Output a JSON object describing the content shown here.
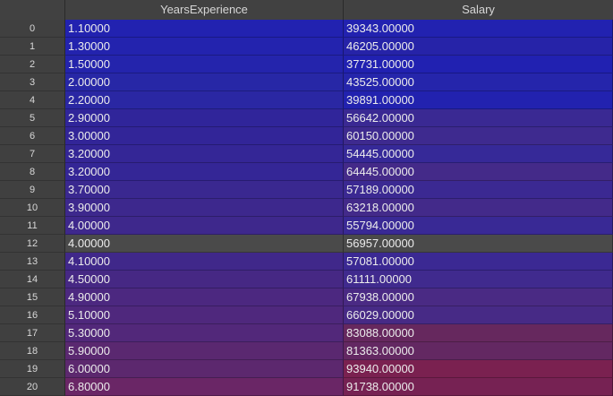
{
  "table": {
    "headers": [
      "",
      "YearsExperience",
      "Salary"
    ],
    "rows": [
      {
        "index": "0",
        "years": "1.10000",
        "salary": "39343.00000",
        "color_years": "#2222b0",
        "color_salary": "#2222b0"
      },
      {
        "index": "1",
        "years": "1.30000",
        "salary": "46205.00000",
        "color_years": "#2323ae",
        "color_salary": "#2623a8"
      },
      {
        "index": "2",
        "years": "1.50000",
        "salary": "37731.00000",
        "color_years": "#2424ac",
        "color_salary": "#2121b1"
      },
      {
        "index": "3",
        "years": "2.00000",
        "salary": "43525.00000",
        "color_years": "#2727a6",
        "color_salary": "#2525ab"
      },
      {
        "index": "4",
        "years": "2.20000",
        "salary": "39891.00000",
        "color_years": "#2a27a3",
        "color_salary": "#2222af"
      },
      {
        "index": "5",
        "years": "2.90000",
        "salary": "56642.00000",
        "color_years": "#30259a",
        "color_salary": "#3a2993"
      },
      {
        "index": "6",
        "years": "3.00000",
        "salary": "60150.00000",
        "color_years": "#322598",
        "color_salary": "#3e2a8f"
      },
      {
        "index": "7",
        "years": "3.20000",
        "salary": "54445.00000",
        "color_years": "#342696",
        "color_salary": "#362998"
      },
      {
        "index": "8",
        "years": "3.20000",
        "salary": "64445.00000",
        "color_years": "#342696",
        "color_salary": "#442a89"
      },
      {
        "index": "9",
        "years": "3.70000",
        "salary": "57189.00000",
        "color_years": "#3a2890",
        "color_salary": "#3b2992"
      },
      {
        "index": "10",
        "years": "3.90000",
        "salary": "63218.00000",
        "color_years": "#3d288d",
        "color_salary": "#432a8a"
      },
      {
        "index": "11",
        "years": "4.00000",
        "salary": "55794.00000",
        "color_years": "#3e288c",
        "color_salary": "#392995"
      },
      {
        "index": "12",
        "years": "4.00000",
        "salary": "56957.00000",
        "color_years": "#4a4a4a",
        "color_salary": "#4a4a4a"
      },
      {
        "index": "13",
        "years": "4.10000",
        "salary": "57081.00000",
        "color_years": "#40288a",
        "color_salary": "#3b2993"
      },
      {
        "index": "14",
        "years": "4.50000",
        "salary": "61111.00000",
        "color_years": "#462884",
        "color_salary": "#402a8e"
      },
      {
        "index": "15",
        "years": "4.90000",
        "salary": "67938.00000",
        "color_years": "#4c2880",
        "color_salary": "#4a2a84"
      },
      {
        "index": "16",
        "years": "5.10000",
        "salary": "66029.00000",
        "color_years": "#4f287d",
        "color_salary": "#472a86"
      },
      {
        "index": "17",
        "years": "5.30000",
        "salary": "83088.00000",
        "color_years": "#52287a",
        "color_salary": "#66285e"
      },
      {
        "index": "18",
        "years": "5.90000",
        "salary": "81363.00000",
        "color_years": "#5a2870",
        "color_salary": "#632862"
      },
      {
        "index": "19",
        "years": "6.00000",
        "salary": "93940.00000",
        "color_years": "#5c286e",
        "color_salary": "#7a2150"
      },
      {
        "index": "20",
        "years": "6.80000",
        "salary": "91738.00000",
        "color_years": "#6a2666",
        "color_salary": "#762253"
      }
    ]
  }
}
